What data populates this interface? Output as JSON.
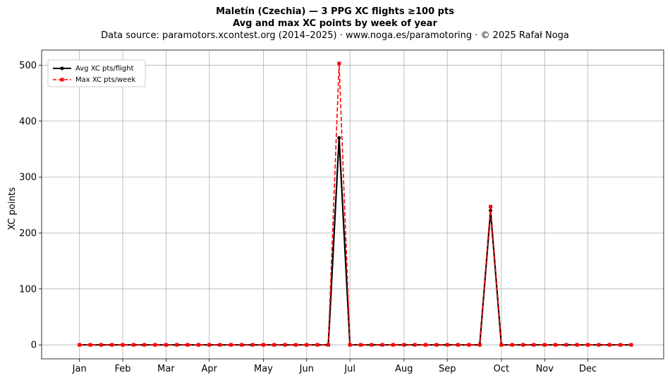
{
  "chart_data": {
    "type": "line",
    "title": "Maletín (Czechia)  —  3 PPG XC flights ≥100 pts",
    "subtitle": "Avg and max XC points by week of year",
    "source": "Data source: paramotors.xcontest.org (2014–2025)  ·  www.noga.es/paramotoring  ·  © 2025 Rafał Noga",
    "xlabel": "",
    "ylabel": "XC points",
    "ylim": [
      -25,
      527
    ],
    "yticks": [
      0,
      100,
      200,
      300,
      400,
      500
    ],
    "xlim": [
      -2.5,
      55
    ],
    "xticks": [
      {
        "label": "Jan",
        "week": 1
      },
      {
        "label": "Feb",
        "week": 5
      },
      {
        "label": "Mar",
        "week": 9
      },
      {
        "label": "Apr",
        "week": 13
      },
      {
        "label": "May",
        "week": 18
      },
      {
        "label": "Jun",
        "week": 22
      },
      {
        "label": "Jul",
        "week": 26
      },
      {
        "label": "Aug",
        "week": 31
      },
      {
        "label": "Sep",
        "week": 35
      },
      {
        "label": "Oct",
        "week": 40
      },
      {
        "label": "Nov",
        "week": 44
      },
      {
        "label": "Dec",
        "week": 48
      }
    ],
    "grid": true,
    "legend_position": "top-left",
    "x": [
      1,
      2,
      3,
      4,
      5,
      6,
      7,
      8,
      9,
      10,
      11,
      12,
      13,
      14,
      15,
      16,
      17,
      18,
      19,
      20,
      21,
      22,
      23,
      24,
      25,
      26,
      27,
      28,
      29,
      30,
      31,
      32,
      33,
      34,
      35,
      36,
      37,
      38,
      39,
      40,
      41,
      42,
      43,
      44,
      45,
      46,
      47,
      48,
      49,
      50,
      51,
      52
    ],
    "series": [
      {
        "name": "Avg XC pts/flight",
        "color": "#000000",
        "style": "solid-circle",
        "values": [
          0,
          0,
          0,
          0,
          0,
          0,
          0,
          0,
          0,
          0,
          0,
          0,
          0,
          0,
          0,
          0,
          0,
          0,
          0,
          0,
          0,
          0,
          0,
          0,
          370,
          0,
          0,
          0,
          0,
          0,
          0,
          0,
          0,
          0,
          0,
          0,
          0,
          0,
          240,
          0,
          0,
          0,
          0,
          0,
          0,
          0,
          0,
          0,
          0,
          0,
          0,
          0
        ]
      },
      {
        "name": "Max XC pts/week",
        "color": "#ff0000",
        "style": "dashed-square",
        "values": [
          0,
          0,
          0,
          0,
          0,
          0,
          0,
          0,
          0,
          0,
          0,
          0,
          0,
          0,
          0,
          0,
          0,
          0,
          0,
          0,
          0,
          0,
          0,
          0,
          503,
          0,
          0,
          0,
          0,
          0,
          0,
          0,
          0,
          0,
          0,
          0,
          0,
          0,
          247,
          0,
          0,
          0,
          0,
          0,
          0,
          0,
          0,
          0,
          0,
          0,
          0,
          0
        ]
      }
    ]
  }
}
